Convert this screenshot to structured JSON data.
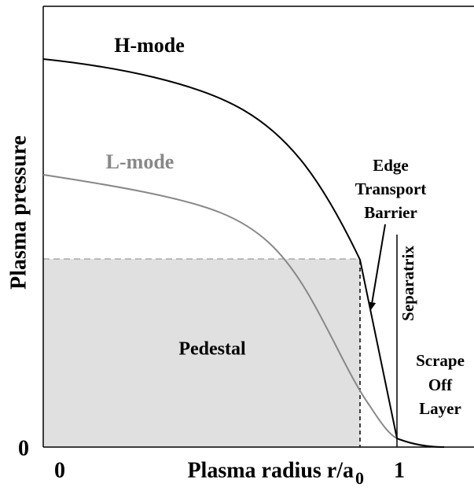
{
  "axes": {
    "y_label": "Plasma pressure",
    "y_zero": "0",
    "x_label": "Plasma radius r/a",
    "x_label_sub": "0",
    "x_zero": "0",
    "x_one": "1"
  },
  "curves": {
    "h_mode": "H-mode",
    "l_mode": "L-mode"
  },
  "regions": {
    "pedestal": "Pedestal",
    "separatrix": "Separatrix",
    "barrier": [
      "Edge",
      "Transport",
      "Barrier"
    ],
    "scrape_off": [
      "Scrape",
      "Off",
      "Layer"
    ]
  }
}
